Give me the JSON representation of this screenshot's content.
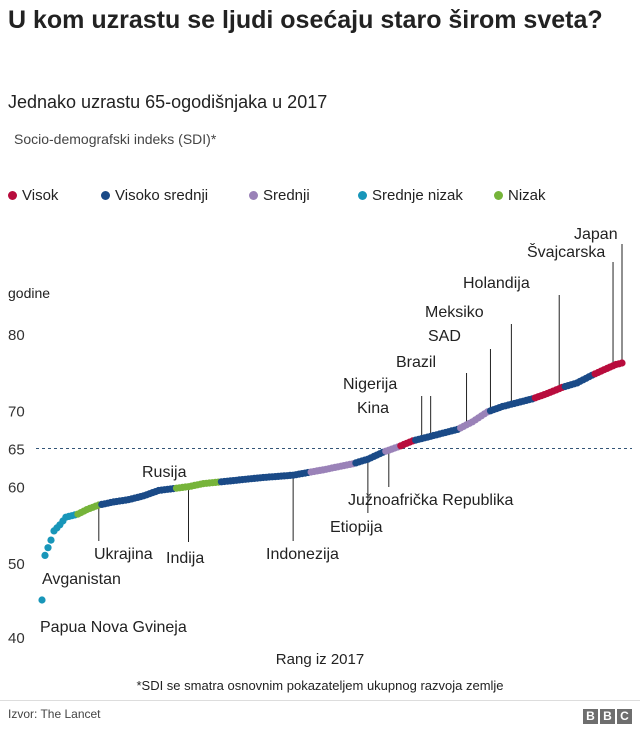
{
  "title": "U kom uzrastu se ljudi osećaju staro širom sveta?",
  "subtitle": "Jednako uzrastu 65-ogodišnjaka u 2017",
  "index_label": "Socio-demografski indeks (SDI)*",
  "footnote": "*SDI se smatra osnovnim pokazateljem ukupnog razvoja zemlje",
  "source": "Izvor: The Lancet",
  "logo_letters": [
    "B",
    "B",
    "C"
  ],
  "legend": [
    {
      "label": "Visok",
      "color": "#b80c3d"
    },
    {
      "label": "Visoko srednji",
      "color": "#1a4a87"
    },
    {
      "label": "Srednji",
      "color": "#9a82b8"
    },
    {
      "label": "Srednje nizak",
      "color": "#1896b9"
    },
    {
      "label": "Nizak",
      "color": "#76b43a"
    }
  ],
  "chart_data": {
    "type": "scatter",
    "xlabel": "Rang iz 2017",
    "ylabel": "godine",
    "ylim": [
      40,
      80
    ],
    "yticks": [
      40,
      50,
      60,
      65,
      70,
      80
    ],
    "reference_line": 65,
    "x_count": 195,
    "curve": [
      [
        1,
        45
      ],
      [
        2,
        51
      ],
      [
        3,
        52
      ],
      [
        4,
        53
      ],
      [
        5,
        54.2
      ],
      [
        7,
        55
      ],
      [
        9,
        56
      ],
      [
        13,
        56.4
      ],
      [
        16,
        57
      ],
      [
        20,
        57.6
      ],
      [
        25,
        58
      ],
      [
        30,
        58.3
      ],
      [
        35,
        58.8
      ],
      [
        40,
        59.5
      ],
      [
        46,
        59.8
      ],
      [
        50,
        60
      ],
      [
        55,
        60.4
      ],
      [
        65,
        60.8
      ],
      [
        75,
        61.2
      ],
      [
        85,
        61.5
      ],
      [
        95,
        62.2
      ],
      [
        105,
        63
      ],
      [
        110,
        63.6
      ],
      [
        115,
        64.5
      ],
      [
        120,
        65.2
      ],
      [
        125,
        66
      ],
      [
        130,
        66.5
      ],
      [
        135,
        67
      ],
      [
        140,
        67.5
      ],
      [
        145,
        68.5
      ],
      [
        150,
        69.8
      ],
      [
        155,
        70.5
      ],
      [
        160,
        71
      ],
      [
        165,
        71.5
      ],
      [
        170,
        72.2
      ],
      [
        175,
        73
      ],
      [
        180,
        73.6
      ],
      [
        185,
        74.6
      ],
      [
        190,
        75.5
      ],
      [
        193,
        76
      ],
      [
        195,
        76.2
      ]
    ],
    "sdi_color_runs": [
      [
        1,
        12,
        "Srednje nizak"
      ],
      [
        13,
        20,
        "Nizak"
      ],
      [
        21,
        45,
        "Visoko srednji"
      ],
      [
        46,
        60,
        "Nizak"
      ],
      [
        61,
        90,
        "Visoko srednji"
      ],
      [
        91,
        105,
        "Srednji"
      ],
      [
        106,
        115,
        "Visoko srednji"
      ],
      [
        116,
        120,
        "Srednji"
      ],
      [
        121,
        125,
        "Visok"
      ],
      [
        126,
        140,
        "Visoko srednji"
      ],
      [
        141,
        150,
        "Srednji"
      ],
      [
        151,
        165,
        "Visoko srednji"
      ],
      [
        166,
        175,
        "Visok"
      ],
      [
        176,
        185,
        "Visoko srednji"
      ],
      [
        186,
        195,
        "Visok"
      ]
    ],
    "annotations": [
      {
        "label": "Papua Nova Gvineja",
        "x": 1,
        "y": 45
      },
      {
        "label": "Avganistan",
        "x": 2,
        "y": 51
      },
      {
        "label": "Ukrajina",
        "x": 20,
        "y": 57.6
      },
      {
        "label": "Rusija",
        "x": 43,
        "y": 59.6
      },
      {
        "label": "Indija",
        "x": 50,
        "y": 60
      },
      {
        "label": "Indonezija",
        "x": 85,
        "y": 61.5
      },
      {
        "label": "Etiopija",
        "x": 110,
        "y": 63.6
      },
      {
        "label": "Južnoafrička Republika",
        "x": 117,
        "y": 64.8
      },
      {
        "label": "Kina",
        "x": 128,
        "y": 66.3
      },
      {
        "label": "Nigerija",
        "x": 131,
        "y": 66.6
      },
      {
        "label": "Brazil",
        "x": 143,
        "y": 68
      },
      {
        "label": "SAD",
        "x": 151,
        "y": 70
      },
      {
        "label": "Meksiko",
        "x": 158,
        "y": 70.8
      },
      {
        "label": "Holandija",
        "x": 174,
        "y": 72.8
      },
      {
        "label": "Švajcarska",
        "x": 192,
        "y": 75.8
      },
      {
        "label": "Japan",
        "x": 195,
        "y": 76.2
      }
    ]
  }
}
